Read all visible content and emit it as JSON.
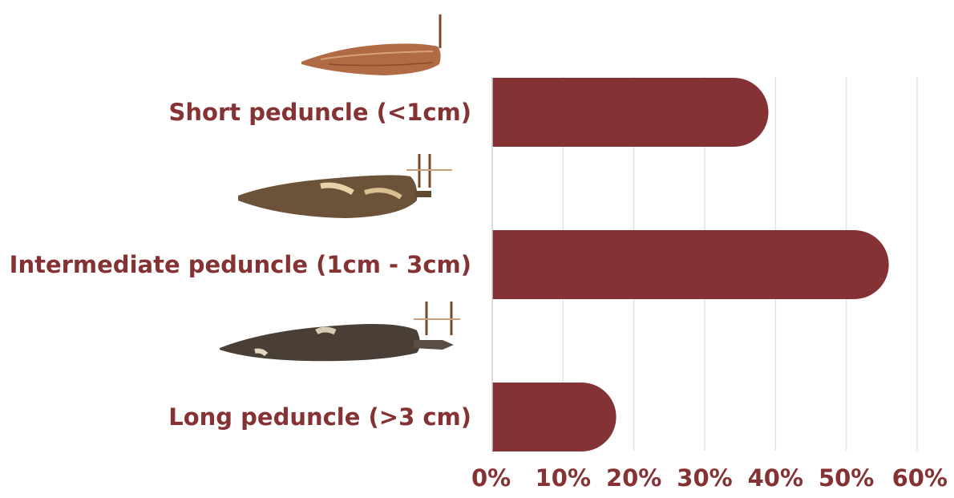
{
  "chart_data": {
    "type": "bar",
    "orientation": "horizontal",
    "title": "",
    "xlabel": "",
    "ylabel": "",
    "categories": [
      "Short peduncle (<1cm)",
      "Intermediate peduncle (1cm - 3cm)",
      "Long peduncle (>3 cm)"
    ],
    "values": [
      39,
      56,
      17.5
    ],
    "value_unit": "%",
    "xlim": [
      0,
      60
    ],
    "xticks": [
      "0%",
      "10%",
      "20%",
      "30%",
      "40%",
      "50%",
      "60%"
    ],
    "grid": true,
    "legend": "none",
    "bar_color": "#843233"
  },
  "illustrations": [
    {
      "name": "cassava-root-short-peduncle",
      "color": "#b06a44"
    },
    {
      "name": "cassava-root-intermediate-peduncle",
      "color": "#6b5238"
    },
    {
      "name": "cassava-root-long-peduncle",
      "color": "#4a3f36"
    }
  ]
}
